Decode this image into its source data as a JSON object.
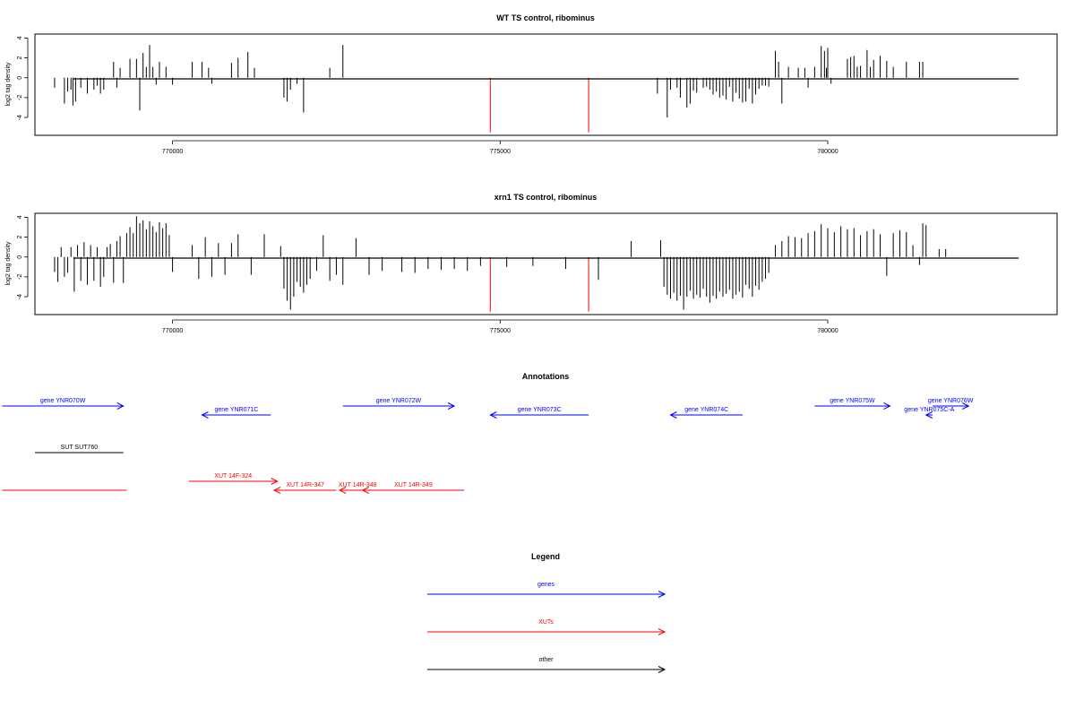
{
  "chart_data": [
    {
      "type": "bar",
      "title": "WT TS control, ribominus",
      "ylabel": "log2 tag density",
      "xlabel": "",
      "xlim": [
        767900,
        783500
      ],
      "ylim": [
        -5.8,
        4.4
      ],
      "yticks": [
        -4,
        -2,
        0,
        2,
        4
      ],
      "xticks": [
        770000,
        775000,
        780000
      ],
      "xtick_labels": [
        "770000",
        "775000",
        "780000"
      ],
      "grid": false,
      "series": [
        {
          "color": "#000000",
          "x": [
            768200,
            768350,
            768400,
            768450,
            768480,
            768520,
            768600,
            768700,
            768800,
            768850,
            768900,
            768950,
            769100,
            769150,
            769200,
            769350,
            769450,
            769500,
            769550,
            769600,
            769650,
            769700,
            769750,
            769800,
            769900,
            770000,
            770300,
            770450,
            770550,
            770600,
            770900,
            771000,
            771150,
            771250,
            771700,
            771750,
            771800,
            771900,
            772000,
            772400,
            772600,
            777400,
            777550,
            777600,
            777700,
            777750,
            777850,
            777900,
            777950,
            778000,
            778100,
            778150,
            778200,
            778250,
            778300,
            778350,
            778400,
            778450,
            778500,
            778550,
            778600,
            778650,
            778700,
            778750,
            778800,
            778850,
            778900,
            778950,
            779000,
            779050,
            779100,
            779200,
            779250,
            779300,
            779400,
            779550,
            779650,
            779700,
            779800,
            779900,
            779950,
            779980,
            780000,
            780050,
            780300,
            780350,
            780400,
            780450,
            780500,
            780600,
            780650,
            780700,
            780800,
            780900,
            781000,
            781200,
            781400,
            781450
          ],
          "values": [
            -1,
            -2.6,
            -1.4,
            -1.2,
            -2.8,
            -2.4,
            -1,
            -1.6,
            -1.2,
            -0.8,
            -1.6,
            -1.2,
            1.6,
            -1,
            1,
            1.9,
            1.9,
            -3.3,
            2.5,
            1.1,
            3.3,
            1.1,
            -0.7,
            1.6,
            1.1,
            -0.7,
            1.6,
            1.6,
            1,
            -0.6,
            1.5,
            2,
            2.6,
            1,
            -2,
            -2.4,
            -1.2,
            -0.6,
            -3.5,
            1,
            3.3,
            -1.6,
            -4,
            -1.2,
            -1,
            -2,
            -3,
            -2.6,
            -1.3,
            -1.5,
            -1,
            -0.9,
            -1.2,
            -1.7,
            -1.4,
            -2,
            -1.8,
            -2.2,
            -0.9,
            -2.4,
            -1.5,
            -2.1,
            -2.5,
            -2.4,
            -1.1,
            -2.6,
            -1.7,
            -1.1,
            -0.8,
            -0.8,
            -0.9,
            2.7,
            1.6,
            -2.6,
            1.1,
            1,
            1,
            -1,
            1.1,
            3.2,
            2.7,
            1,
            3,
            -0.6,
            1.9,
            2.1,
            2.2,
            1.1,
            1.2,
            2.8,
            1.1,
            1.8,
            2.2,
            1.7,
            1.1,
            1.6,
            1.6,
            1.6
          ]
        },
        {
          "color": "#ff0000",
          "x": [
            774850,
            776350
          ],
          "values": [
            -5.5,
            -5.5
          ]
        }
      ]
    },
    {
      "type": "bar",
      "title": "xrn1 TS control, ribominus",
      "ylabel": "log2 tag density",
      "xlabel": "",
      "xlim": [
        767900,
        783500
      ],
      "ylim": [
        -5.8,
        4.4
      ],
      "yticks": [
        -4,
        -2,
        0,
        2,
        4
      ],
      "xticks": [
        770000,
        775000,
        780000
      ],
      "xtick_labels": [
        "770000",
        "775000",
        "780000"
      ],
      "grid": false,
      "series": [
        {
          "color": "#000000",
          "x": [
            768200,
            768250,
            768300,
            768350,
            768400,
            768450,
            768500,
            768550,
            768600,
            768650,
            768700,
            768750,
            768800,
            768850,
            768900,
            768950,
            769000,
            769050,
            769100,
            769150,
            769200,
            769250,
            769300,
            769350,
            769400,
            769450,
            769500,
            769550,
            769600,
            769650,
            769700,
            769750,
            769800,
            769850,
            769900,
            769950,
            770000,
            770300,
            770400,
            770500,
            770600,
            770700,
            770800,
            770900,
            771000,
            771200,
            771400,
            771650,
            771700,
            771750,
            771800,
            771850,
            771900,
            771950,
            772000,
            772050,
            772100,
            772200,
            772300,
            772400,
            772500,
            772600,
            772800,
            773000,
            773200,
            773500,
            773700,
            773900,
            774100,
            774300,
            774500,
            774700,
            775100,
            775500,
            776000,
            776500,
            777000,
            777450,
            777500,
            777550,
            777600,
            777650,
            777700,
            777750,
            777800,
            777850,
            777900,
            777950,
            778000,
            778050,
            778100,
            778150,
            778200,
            778250,
            778300,
            778350,
            778400,
            778450,
            778500,
            778550,
            778600,
            778650,
            778700,
            778750,
            778800,
            778850,
            778900,
            778950,
            779000,
            779050,
            779100,
            779200,
            779300,
            779400,
            779500,
            779600,
            779700,
            779800,
            779900,
            780000,
            780100,
            780200,
            780300,
            780400,
            780500,
            780600,
            780700,
            780800,
            780900,
            781000,
            781100,
            781200,
            781300,
            781400,
            781450,
            781500,
            781700,
            781800
          ],
          "values": [
            -1.5,
            -2.5,
            1,
            -2,
            -1.6,
            1,
            -3.5,
            1.2,
            -2.4,
            1.5,
            -2.8,
            1.2,
            -2.4,
            1,
            -3,
            -2,
            1,
            1.3,
            -2.6,
            1.6,
            2.1,
            -2.6,
            2.4,
            3,
            2.4,
            4.1,
            3.4,
            3.7,
            2.8,
            3.6,
            3.1,
            2.5,
            3.5,
            2.9,
            3.4,
            2.2,
            -1.5,
            1.2,
            -2.2,
            2,
            -2,
            1.4,
            -1.8,
            1.4,
            2.3,
            -1.8,
            2.3,
            1.1,
            -3.2,
            -4.4,
            -5.3,
            -4,
            -2.5,
            -3,
            -3.6,
            -2.8,
            -2.2,
            -1.4,
            2.2,
            -2.4,
            -1.8,
            -2.8,
            1.9,
            -1.8,
            -1.4,
            -1.5,
            -1.6,
            -1.2,
            -1.3,
            -1.2,
            -1.4,
            -0.9,
            -1,
            -0.9,
            -1.2,
            -2.3,
            1.6,
            1.7,
            -3,
            -3.8,
            -4.2,
            -3.6,
            -4.4,
            -3.9,
            -5.3,
            -4,
            -3.4,
            -4.2,
            -3.8,
            -4.1,
            -3.2,
            -4,
            -4.6,
            -3.9,
            -4.2,
            -3.5,
            -4,
            -3.7,
            -3.3,
            -4.2,
            -3.8,
            -3.5,
            -4.1,
            -2.8,
            -3.2,
            -4,
            -2.9,
            -3.3,
            -2.5,
            -2.2,
            -1.6,
            1.2,
            1.6,
            2.1,
            2,
            1.9,
            2.4,
            2.6,
            3.3,
            2.9,
            2.5,
            3.1,
            2.8,
            2.9,
            2.2,
            2.6,
            2.8,
            2.3,
            -1.9,
            2.4,
            2.7,
            2.5,
            1.2,
            -0.8,
            3.4,
            3.2,
            0.8,
            0.8
          ]
        },
        {
          "color": "#ff0000",
          "x": [
            774850,
            776350
          ],
          "values": [
            -5.5,
            -5.5
          ]
        }
      ]
    }
  ],
  "annotations": {
    "title": "Annotations",
    "x_range": [
      767900,
      783500
    ],
    "tracks": [
      {
        "color": "#0000ff",
        "items": [
          {
            "label": "gene YNR070W",
            "start": 767400,
            "end": 769250,
            "strand": "+",
            "row": 0
          },
          {
            "label": "gene YNR071C",
            "start": 770450,
            "end": 771500,
            "strand": "-",
            "row": 1
          },
          {
            "label": "gene YNR072W",
            "start": 772600,
            "end": 774300,
            "strand": "+",
            "row": 0
          },
          {
            "label": "gene YNR073C",
            "start": 774850,
            "end": 776350,
            "strand": "-",
            "row": 1
          },
          {
            "label": "gene YNR074C",
            "start": 777600,
            "end": 778700,
            "strand": "-",
            "row": 1
          },
          {
            "label": "gene YNR075W",
            "start": 779800,
            "end": 780950,
            "strand": "+",
            "row": 0
          },
          {
            "label": "gene YNR075C-A",
            "start": 781500,
            "end": 781600,
            "strand": "-",
            "row": 1
          },
          {
            "label": "gene YNR076W",
            "start": 781600,
            "end": 782150,
            "strand": "+",
            "row": 0
          }
        ]
      },
      {
        "color": "#000000",
        "items": [
          {
            "label": "SUT SUT760",
            "start": 767900,
            "end": 769250,
            "strand": "none",
            "row": 0
          }
        ]
      },
      {
        "color": "#ff0000",
        "items": [
          {
            "label": "",
            "start": 767400,
            "end": 769300,
            "strand": "none",
            "row": 1
          },
          {
            "label": "XUT 14F-324",
            "start": 770250,
            "end": 771600,
            "strand": "+",
            "row": 0
          },
          {
            "label": "XUT 14R-347",
            "start": 771550,
            "end": 772500,
            "strand": "-",
            "row": 1
          },
          {
            "label": "XUT 14R-348",
            "start": 772550,
            "end": 773100,
            "strand": "-",
            "row": 1
          },
          {
            "label": "XUT 14R-349",
            "start": 772900,
            "end": 774450,
            "strand": "-",
            "row": 1
          }
        ]
      }
    ]
  },
  "legend": {
    "title": "Legend",
    "entries": [
      {
        "label": "genes",
        "color": "#0000ff"
      },
      {
        "label": "XUTs",
        "color": "#ff0000"
      },
      {
        "label": "other",
        "color": "#000000"
      }
    ]
  }
}
